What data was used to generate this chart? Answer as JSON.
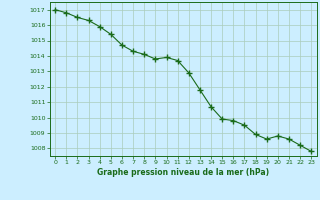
{
  "x": [
    0,
    1,
    2,
    3,
    4,
    5,
    6,
    7,
    8,
    9,
    10,
    11,
    12,
    13,
    14,
    15,
    16,
    17,
    18,
    19,
    20,
    21,
    22,
    23
  ],
  "y": [
    1017.0,
    1016.8,
    1016.5,
    1016.3,
    1015.9,
    1015.4,
    1014.7,
    1014.3,
    1014.1,
    1013.8,
    1013.9,
    1013.7,
    1012.9,
    1011.8,
    1010.7,
    1009.9,
    1009.8,
    1009.5,
    1008.9,
    1008.6,
    1008.8,
    1008.6,
    1008.2,
    1007.8
  ],
  "line_color": "#1a6b1a",
  "marker": "+",
  "marker_size": 4,
  "bg_color": "#cceeff",
  "grid_color": "#aaccbb",
  "xlabel": "Graphe pression niveau de la mer (hPa)",
  "xlabel_color": "#1a6b1a",
  "tick_color": "#1a6b1a",
  "ylim_min": 1007.5,
  "ylim_max": 1017.5,
  "xtick_labels": [
    "0",
    "1",
    "2",
    "3",
    "4",
    "5",
    "6",
    "7",
    "8",
    "9",
    "10",
    "11",
    "12",
    "13",
    "14",
    "15",
    "16",
    "17",
    "18",
    "19",
    "20",
    "21",
    "22",
    "23"
  ]
}
